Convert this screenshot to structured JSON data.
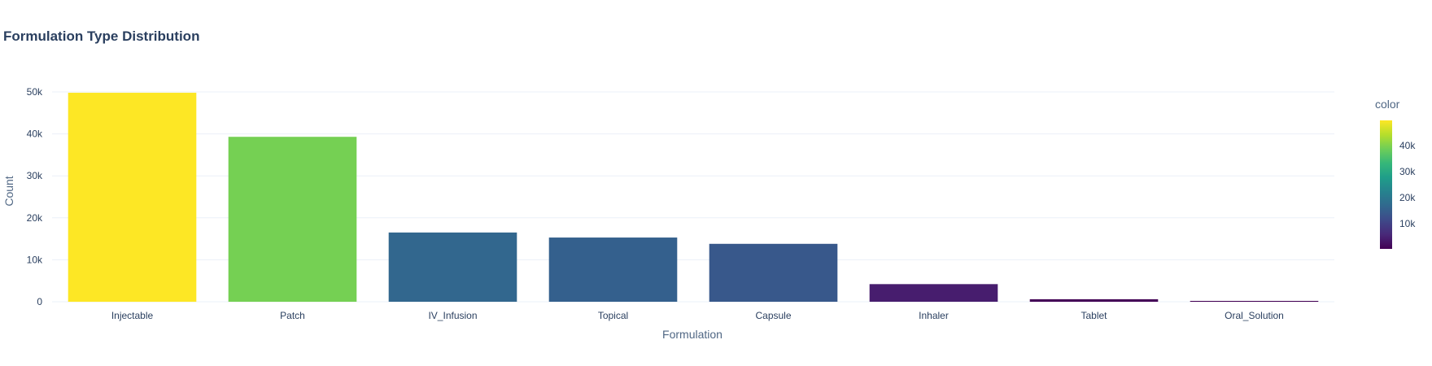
{
  "chart_data": {
    "type": "bar",
    "title": "Formulation Type Distribution",
    "xlabel": "Formulation",
    "ylabel": "Count",
    "categories": [
      "Injectable",
      "Patch",
      "IV_Infusion",
      "Topical",
      "Capsule",
      "Inhaler",
      "Tablet",
      "Oral_Solution"
    ],
    "values": [
      49800,
      39300,
      16500,
      15300,
      13800,
      4200,
      600,
      200
    ],
    "ylim": [
      0,
      52000
    ],
    "y_ticks": [
      0,
      10000,
      20000,
      30000,
      40000,
      50000
    ],
    "y_tick_labels": [
      "0",
      "10k",
      "20k",
      "30k",
      "40k",
      "50k"
    ],
    "grid": true,
    "colorscale": "viridis",
    "colorbar": {
      "title": "color",
      "range": [
        200,
        49800
      ],
      "ticks": [
        10000,
        20000,
        30000,
        40000
      ],
      "tick_labels": [
        "10k",
        "20k",
        "30k",
        "40k"
      ]
    },
    "colors": {
      "grid": "#ebf0f8",
      "tick_text": "#2a3f5f",
      "title_text": "#2a3f5f"
    }
  }
}
